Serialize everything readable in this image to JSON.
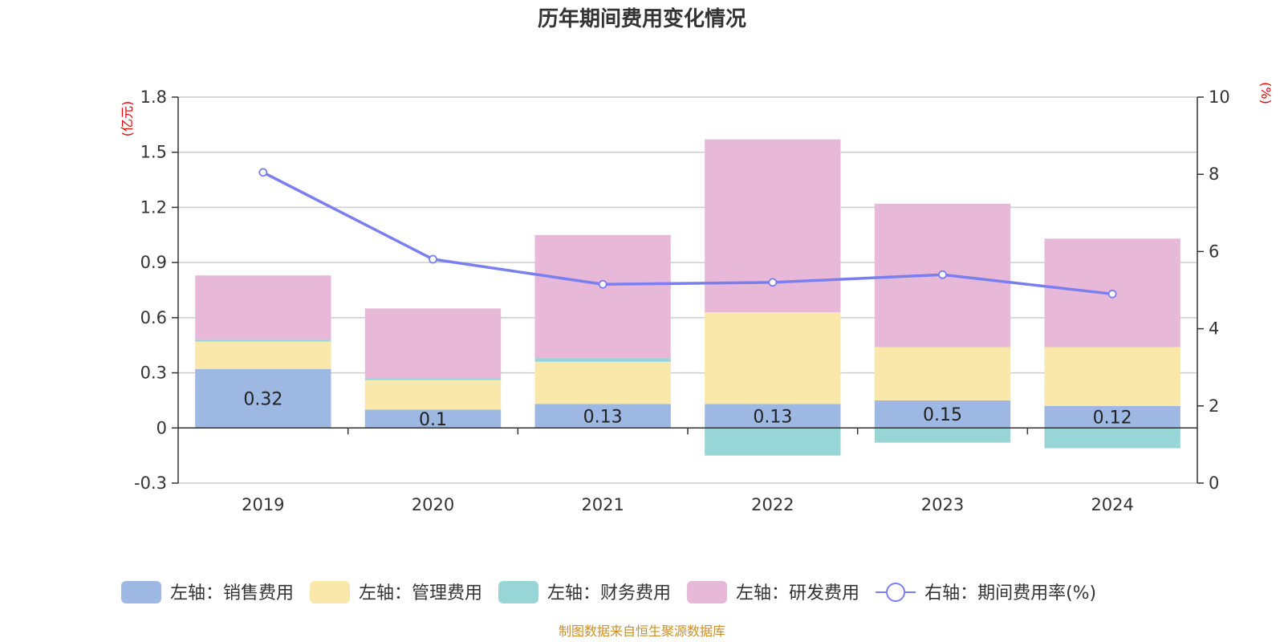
{
  "chart_data": {
    "type": "bar",
    "title": "历年期间费用变化情况",
    "left_unit": "(亿元)",
    "right_unit": "(%)",
    "categories": [
      "2019",
      "2020",
      "2021",
      "2022",
      "2023",
      "2024"
    ],
    "ylim_left": [
      -0.3,
      1.8
    ],
    "yticks_left": [
      "1.8",
      "1.5",
      "1.2",
      "0.9",
      "0.6",
      "0.3",
      "0",
      "-0.3"
    ],
    "ylim_right": [
      0,
      10
    ],
    "yticks_right": [
      "10",
      "8",
      "6",
      "4",
      "2",
      "0"
    ],
    "series": [
      {
        "name": "左轴：销售费用",
        "color": "#9db8e2",
        "values": [
          0.32,
          0.1,
          0.13,
          0.13,
          0.15,
          0.12
        ],
        "labels": [
          "0.32",
          "0.1",
          "0.13",
          "0.13",
          "0.15",
          "0.12"
        ]
      },
      {
        "name": "左轴：管理费用",
        "color": "#f9e8a9",
        "values": [
          0.15,
          0.16,
          0.23,
          0.5,
          0.29,
          0.32
        ]
      },
      {
        "name": "左轴：财务费用",
        "color": "#98d5d6",
        "values": [
          0.01,
          0.01,
          0.02,
          -0.15,
          -0.08,
          -0.11
        ]
      },
      {
        "name": "左轴：研发费用",
        "color": "#e8b8d9",
        "values": [
          0.35,
          0.38,
          0.67,
          0.94,
          0.78,
          0.59
        ]
      }
    ],
    "line": {
      "name": "右轴：期间费用率(%)",
      "color": "#7a7ff0",
      "values": [
        8.05,
        5.8,
        5.15,
        5.2,
        5.4,
        4.9
      ]
    },
    "source": "制图数据来自恒生聚源数据库"
  }
}
